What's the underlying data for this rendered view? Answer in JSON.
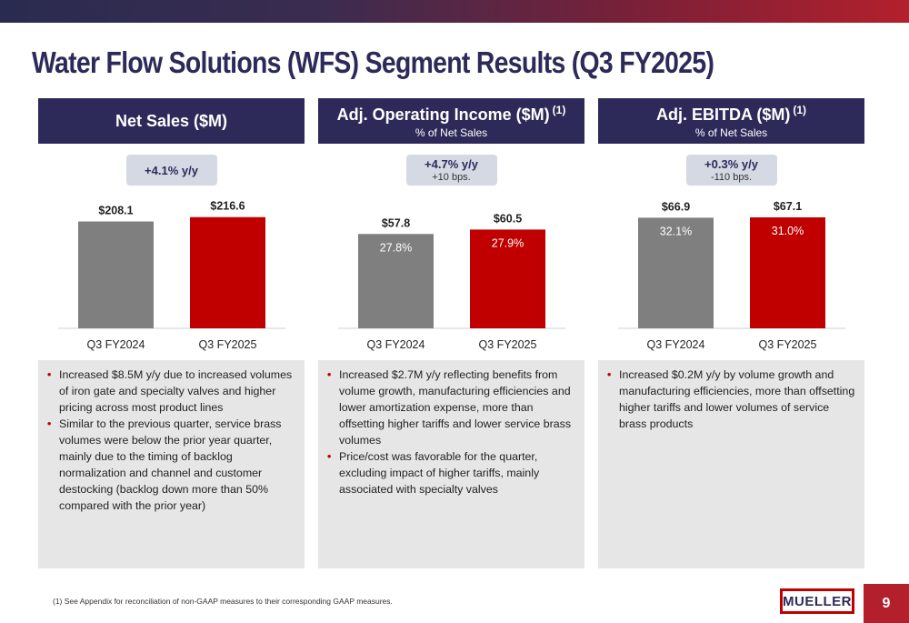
{
  "title": "Water Flow Solutions (WFS) Segment Results (Q3 FY2025)",
  "colors": {
    "navy": "#2d2a5a",
    "prior_bar": "#7f7f7f",
    "current_bar": "#c00000",
    "badge_bg": "#d4d9e4",
    "notes_bg": "#e6e6e6"
  },
  "panels": [
    {
      "header": {
        "title": "Net Sales ($M)",
        "superscript": "",
        "subtitle": ""
      },
      "growth": {
        "main": "+4.1% y/y",
        "sub": ""
      },
      "bullets": [
        "Increased $8.5M y/y due to increased volumes of iron gate and specialty valves and higher pricing across most product lines",
        "Similar to the previous quarter, service brass volumes were below the prior year quarter, mainly due to the timing of backlog normalization and channel and customer destocking (backlog down more than 50% compared with the prior year)"
      ]
    },
    {
      "header": {
        "title": "Adj. Operating Income ($M)",
        "superscript": "(1)",
        "subtitle": "% of Net Sales"
      },
      "growth": {
        "main": "+4.7% y/y",
        "sub": "+10 bps."
      },
      "bullets": [
        "Increased $2.7M y/y reflecting benefits from volume growth, manufacturing efficiencies and lower amortization expense, more than offsetting higher tariffs and lower service brass volumes",
        "Price/cost was favorable for the quarter, excluding impact of higher tariffs, mainly associated with specialty valves"
      ]
    },
    {
      "header": {
        "title": "Adj. EBITDA ($M)",
        "superscript": "(1)",
        "subtitle": "% of Net Sales"
      },
      "growth": {
        "main": "+0.3% y/y",
        "sub": "-110 bps."
      },
      "bullets": [
        "Increased $0.2M y/y by volume growth and manufacturing efficiencies, more than offsetting higher tariffs and lower volumes of service brass products"
      ]
    }
  ],
  "chart_data": [
    {
      "type": "bar",
      "categories": [
        "Q3 FY2024",
        "Q3 FY2025"
      ],
      "values": [
        208.1,
        216.6
      ],
      "value_labels": [
        "$208.1",
        "$216.6"
      ],
      "inner_labels": [
        "",
        ""
      ],
      "ylim": [
        0,
        248
      ]
    },
    {
      "type": "bar",
      "categories": [
        "Q3 FY2024",
        "Q3 FY2025"
      ],
      "values": [
        57.8,
        60.5
      ],
      "value_labels": [
        "$57.8",
        "$60.5"
      ],
      "inner_labels": [
        "27.8%",
        "27.9%"
      ],
      "ylim": [
        0,
        78
      ]
    },
    {
      "type": "bar",
      "categories": [
        "Q3 FY2024",
        "Q3 FY2025"
      ],
      "values": [
        66.9,
        67.1
      ],
      "value_labels": [
        "$66.9",
        "$67.1"
      ],
      "inner_labels": [
        "32.1%",
        "31.0%"
      ],
      "ylim": [
        0,
        77
      ]
    }
  ],
  "footnote": "(1)  See Appendix for reconciliation of non-GAAP measures to their corresponding GAAP measures.",
  "logo_text": "MUELLER",
  "page_number": "9"
}
